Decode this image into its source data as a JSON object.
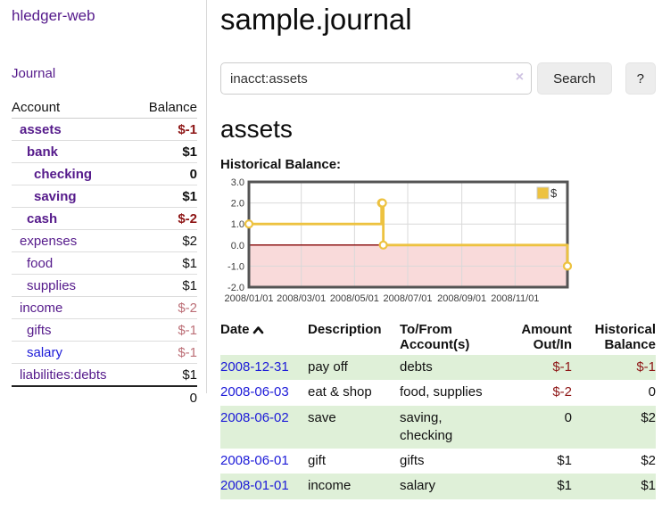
{
  "colors": {
    "link-purple": "#551a8b",
    "link-blue": "#1c1ad8",
    "neg-dark": "#8e1616",
    "neg-dim": "#bc6f77",
    "row-green": "#dff0d8",
    "chart-yellow": "#edc240",
    "chart-pink": "#f9dada",
    "chart-zero": "#8e1616",
    "btn-gray": "#ededed"
  },
  "sidebar": {
    "brand": "hledger-web",
    "journal_link": "Journal",
    "accounts_table": {
      "headers": {
        "account": "Account",
        "balance": "Balance"
      },
      "rows": [
        {
          "name": "assets",
          "balance": "$-1"
        },
        {
          "name": "bank",
          "balance": "$1"
        },
        {
          "name": "checking",
          "balance": "0"
        },
        {
          "name": "saving",
          "balance": "$1"
        },
        {
          "name": "cash",
          "balance": "$-2"
        },
        {
          "name": "expenses",
          "balance": "$2"
        },
        {
          "name": "food",
          "balance": "$1"
        },
        {
          "name": "supplies",
          "balance": "$1"
        },
        {
          "name": "income",
          "balance": "$-2"
        },
        {
          "name": "gifts",
          "balance": "$-1"
        },
        {
          "name": "salary",
          "balance": "$-1"
        },
        {
          "name": "liabilities:debts",
          "balance": "$1"
        }
      ],
      "total": "0"
    }
  },
  "main": {
    "title": "sample.journal",
    "search": {
      "value": "inacct:assets",
      "clear_icon": "×",
      "button": "Search",
      "help_button": "?"
    },
    "account_heading": "assets",
    "chart_heading": "Historical Balance:"
  },
  "chart_data": {
    "type": "line",
    "title": "Historical Balance:",
    "series": [
      {
        "name": "$",
        "color": "#edc240",
        "step": true,
        "points": [
          [
            "2008-01-01",
            1
          ],
          [
            "2008-06-01",
            2
          ],
          [
            "2008-06-02",
            2
          ],
          [
            "2008-06-03",
            0
          ],
          [
            "2008-12-31",
            -1
          ]
        ]
      }
    ],
    "x_range": [
      "2008-01-01",
      "2008-12-31"
    ],
    "x_ticks": [
      "2008/01/01",
      "2008/03/01",
      "2008/05/01",
      "2008/07/01",
      "2008/09/01",
      "2008/11/01"
    ],
    "y_ticks": [
      3.0,
      2.0,
      1.0,
      0.0,
      -1.0,
      -2.0
    ],
    "ylim": [
      -2,
      3
    ],
    "grid": true,
    "legend": {
      "label": "$",
      "position": "top-right"
    },
    "negative_region_color": "#f9dada",
    "zero_line_color": "#8e1616"
  },
  "register": {
    "headers": {
      "date": "Date",
      "description": "Description",
      "accounts": "To/From Account(s)",
      "amount": "Amount Out/In",
      "balance": "Historical Balance"
    },
    "rows": [
      {
        "date": "2008-12-31",
        "description": "pay off",
        "accounts": "debts",
        "amount": "$-1",
        "balance": "$-1"
      },
      {
        "date": "2008-06-03",
        "description": "eat & shop",
        "accounts": "food, supplies",
        "amount": "$-2",
        "balance": "0"
      },
      {
        "date": "2008-06-02",
        "description": "save",
        "accounts": "saving,\nchecking",
        "amount": "0",
        "balance": "$2"
      },
      {
        "date": "2008-06-01",
        "description": "gift",
        "accounts": "gifts",
        "amount": "$1",
        "balance": "$2"
      },
      {
        "date": "2008-01-01",
        "description": "income",
        "accounts": "salary",
        "amount": "$1",
        "balance": "$1"
      }
    ]
  }
}
